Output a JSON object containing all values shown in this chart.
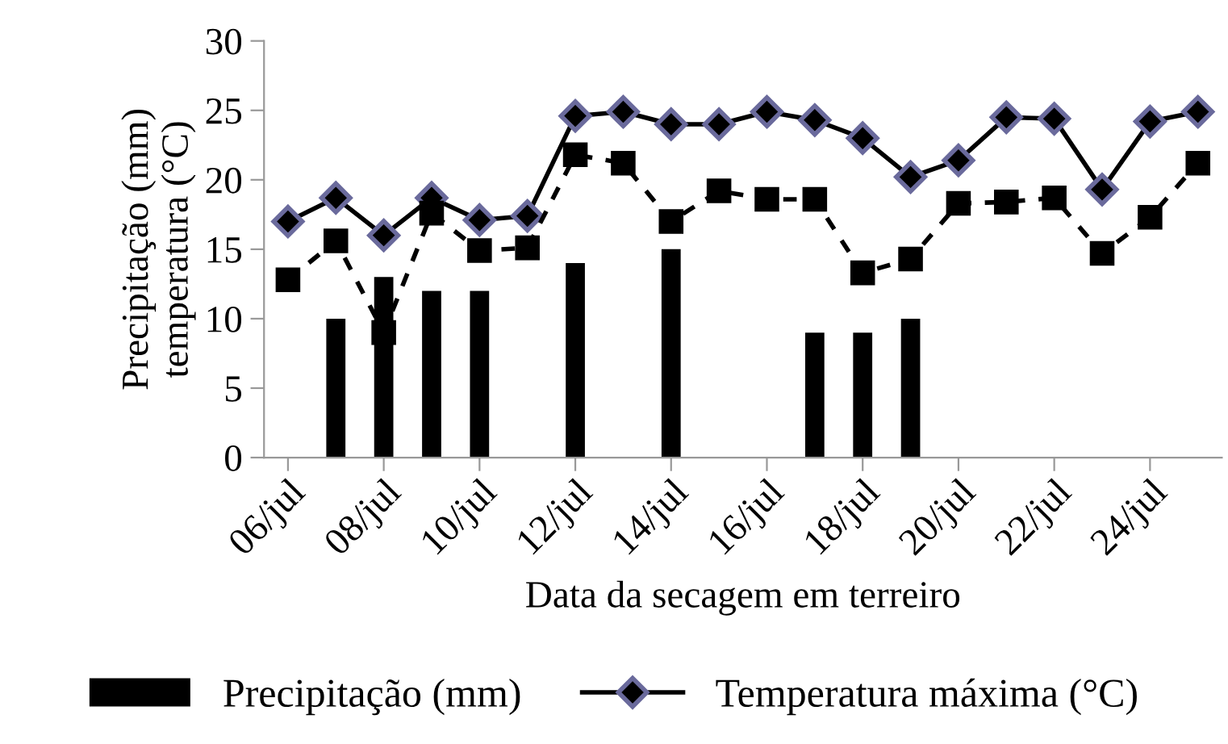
{
  "chart_data": {
    "type": "bar",
    "xlabel": "Data da secagem em terreiro",
    "ylabel": "Precipitação (mm)\ntemperatura (°C)",
    "categories": [
      "06/jul",
      null,
      "08/jul",
      null,
      "10/jul",
      null,
      "12/jul",
      null,
      "14/jul",
      null,
      "16/jul",
      null,
      "18/jul",
      null,
      "20/jul",
      null,
      "22/jul",
      null,
      "24/jul",
      null
    ],
    "series": [
      {
        "name": "Precipitação (mm)",
        "color": "#000000",
        "values": [
          null,
          10,
          13,
          12,
          12,
          null,
          14,
          null,
          15,
          null,
          null,
          9,
          9,
          10,
          null,
          null,
          null,
          null,
          null,
          null
        ]
      },
      {
        "name": "Temperatura máxima (°C)",
        "type": "line",
        "color": "#000000",
        "marker": "diamond",
        "line_style": "solid",
        "values": [
          17,
          18.7,
          16,
          18.7,
          17.1,
          17.4,
          24.6,
          24.9,
          24.0,
          24.0,
          24.9,
          24.3,
          23.0,
          20.2,
          21.4,
          24.5,
          24.4,
          19.3,
          24.2,
          24.9
        ]
      },
      {
        "type": "line",
        "color": "#000000",
        "marker": "square",
        "line_style": "dashed",
        "values": [
          12.8,
          15.6,
          9.0,
          17.6,
          14.9,
          15.1,
          21.8,
          21.2,
          17.0,
          19.2,
          18.6,
          18.6,
          13.3,
          14.3,
          18.3,
          18.4,
          18.7,
          14.7,
          17.3,
          21.2
        ]
      }
    ],
    "ylim": [
      0,
      30
    ],
    "yticks": [
      0,
      5,
      10,
      15,
      20,
      25,
      30
    ],
    "grid": false,
    "legend": "bottom"
  }
}
